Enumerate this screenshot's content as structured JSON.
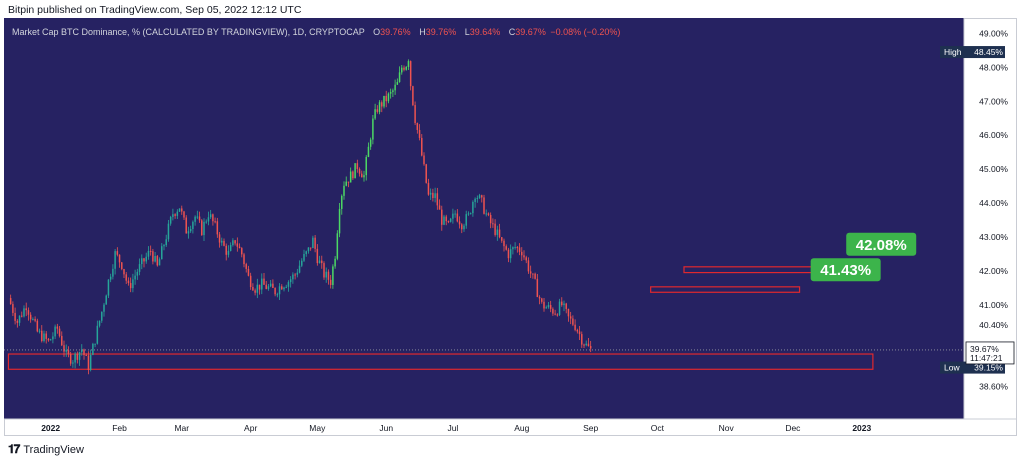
{
  "header": {
    "publisher": "Bitpin published on TradingView.com, Sep 05, 2022 12:12 UTC"
  },
  "legend": {
    "title": "Market Cap BTC Dominance, % (CALCULATED BY TRADINGVIEW), 1D, CRYPTOCAP",
    "o_label": "O",
    "o_value": "39.76%",
    "h_label": "H",
    "h_value": "39.76%",
    "l_label": "L",
    "l_value": "39.64%",
    "c_label": "C",
    "c_value": "39.67%",
    "change": "−0.08% (−0.20%)"
  },
  "footer": {
    "brand": "TradingView"
  },
  "colors": {
    "background": "#262262",
    "up": "#26a69a",
    "up_bright": "#4cd964",
    "down": "#ef5350",
    "zone_stroke": "#e0282e",
    "label_green": "#3cb44b",
    "axis_text": "#131722"
  },
  "chart_data": {
    "type": "candlestick",
    "title": "Market Cap BTC Dominance, % (CALCULATED BY TRADINGVIEW), 1D, CRYPTOCAP",
    "xlabel": "",
    "ylabel": "",
    "ylim": [
      37.9,
      49.1
    ],
    "y_ticks": [
      "49.00%",
      "48.00%",
      "47.00%",
      "46.00%",
      "45.00%",
      "44.00%",
      "43.00%",
      "42.00%",
      "41.00%",
      "40.40%",
      "38.60%"
    ],
    "y_tick_values": [
      49.0,
      48.0,
      47.0,
      46.0,
      45.0,
      44.0,
      43.0,
      42.0,
      41.0,
      40.4,
      38.6
    ],
    "x_ticks": [
      "2022",
      "Feb",
      "Mar",
      "Apr",
      "May",
      "Jun",
      "Jul",
      "Aug",
      "Sep",
      "Oct",
      "Nov",
      "Dec",
      "2023"
    ],
    "x_tick_days": [
      0,
      31,
      59,
      90,
      120,
      151,
      181,
      212,
      243,
      273,
      304,
      334,
      365
    ],
    "x_range_days": [
      -21,
      411
    ],
    "high": {
      "label": "High",
      "value": "48.45%",
      "y": 48.45
    },
    "low": {
      "label": "Low",
      "value": "39.15%",
      "y": 39.15
    },
    "last": {
      "value": "39.67%",
      "time": "11:47:21",
      "y": 39.67
    },
    "price_path": [
      [
        -19,
        41.2
      ],
      [
        -15,
        40.5
      ],
      [
        -11,
        41.0
      ],
      [
        -6,
        40.2
      ],
      [
        -1,
        39.9
      ],
      [
        3,
        40.3
      ],
      [
        7,
        39.5
      ],
      [
        10,
        39.4
      ],
      [
        14,
        39.7
      ],
      [
        17,
        39.2
      ],
      [
        20,
        40.0
      ],
      [
        23,
        40.8
      ],
      [
        26,
        41.7
      ],
      [
        29,
        42.5
      ],
      [
        32,
        42.2
      ],
      [
        35,
        41.5
      ],
      [
        39,
        42.0
      ],
      [
        42,
        42.3
      ],
      [
        45,
        42.6
      ],
      [
        48,
        42.1
      ],
      [
        51,
        42.8
      ],
      [
        55,
        43.7
      ],
      [
        58,
        43.9
      ],
      [
        61,
        43.2
      ],
      [
        65,
        43.6
      ],
      [
        68,
        43.2
      ],
      [
        71,
        43.7
      ],
      [
        74,
        43.3
      ],
      [
        77,
        42.8
      ],
      [
        80,
        42.5
      ],
      [
        83,
        42.9
      ],
      [
        86,
        42.5
      ],
      [
        89,
        41.8
      ],
      [
        92,
        41.5
      ],
      [
        95,
        41.6
      ],
      [
        98,
        41.5
      ],
      [
        101,
        41.4
      ],
      [
        104,
        41.6
      ],
      [
        107,
        41.7
      ],
      [
        110,
        41.9
      ],
      [
        113,
        42.3
      ],
      [
        116,
        42.6
      ],
      [
        118,
        42.9
      ],
      [
        120,
        42.4
      ],
      [
        123,
        41.9
      ],
      [
        126,
        41.7
      ],
      [
        128,
        42.5
      ],
      [
        130,
        44.0
      ],
      [
        132,
        44.6
      ],
      [
        135,
        44.8
      ],
      [
        138,
        45.1
      ],
      [
        141,
        44.8
      ],
      [
        143,
        45.6
      ],
      [
        145,
        46.4
      ],
      [
        147,
        46.8
      ],
      [
        150,
        47.0
      ],
      [
        153,
        47.2
      ],
      [
        156,
        47.5
      ],
      [
        158,
        48.0
      ],
      [
        160,
        48.1
      ],
      [
        161,
        48.3
      ],
      [
        162,
        47.5
      ],
      [
        164,
        46.5
      ],
      [
        166,
        45.8
      ],
      [
        168,
        45.0
      ],
      [
        170,
        44.2
      ],
      [
        173,
        44.2
      ],
      [
        176,
        43.5
      ],
      [
        179,
        43.3
      ],
      [
        182,
        43.7
      ],
      [
        185,
        43.4
      ],
      [
        188,
        43.6
      ],
      [
        191,
        44.3
      ],
      [
        194,
        44.0
      ],
      [
        197,
        43.5
      ],
      [
        200,
        43.2
      ],
      [
        203,
        42.8
      ],
      [
        206,
        42.5
      ],
      [
        209,
        42.7
      ],
      [
        212,
        42.6
      ],
      [
        215,
        42.1
      ],
      [
        218,
        41.6
      ],
      [
        221,
        41.0
      ],
      [
        224,
        40.9
      ],
      [
        227,
        40.8
      ],
      [
        230,
        41.0
      ],
      [
        233,
        40.6
      ],
      [
        236,
        40.4
      ],
      [
        239,
        40.0
      ],
      [
        241,
        39.8
      ],
      [
        243,
        39.67
      ]
    ],
    "zones": [
      {
        "x0": -19,
        "x1": 370,
        "y0": 39.55,
        "y1": 39.1
      },
      {
        "x0": 270,
        "x1": 337,
        "y0": 41.53,
        "y1": 41.37
      },
      {
        "x0": 285,
        "x1": 350,
        "y0": 42.12,
        "y1": 41.95
      }
    ],
    "labels": [
      {
        "text": "42.08%",
        "x": 358,
        "y": 42.8
      },
      {
        "text": "41.43%",
        "x": 342,
        "y": 42.05
      }
    ]
  }
}
